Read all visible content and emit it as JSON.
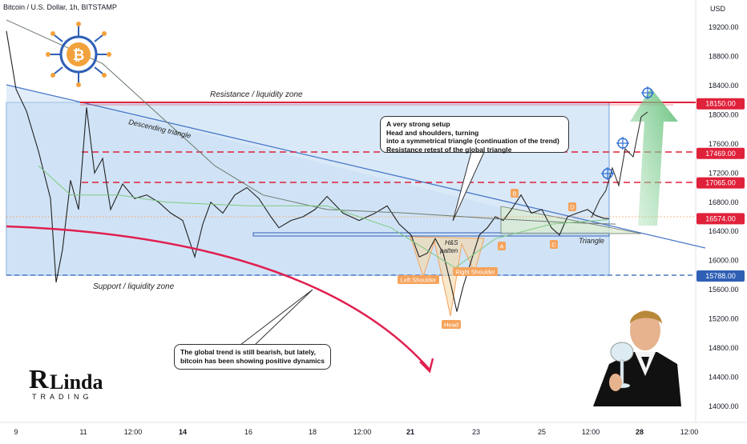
{
  "header": {
    "title": "Bitcoin / U.S. Dollar, 1h, BITSTAMP"
  },
  "currency": "USD",
  "brand": {
    "logo_main": "Linda",
    "logo_r": "R",
    "logo_sub": "TRADING"
  },
  "colors": {
    "resistance": "#e0213a",
    "triangle": "#4a78c8",
    "zone_fill": "#b9d7f2",
    "label_orange": "#f5a35c",
    "ma_slow": "#6d7a6d",
    "ma_fast": "#7ec97e",
    "arrow_green": "#7cc98a",
    "curve_red": "#e02050",
    "candle_up": "#222222",
    "candle_down": "#e02050"
  },
  "chart_data": {
    "type": "line",
    "ylim": [
      13800,
      19300
    ],
    "y_ticks": [
      14000,
      14400,
      14800,
      15200,
      15600,
      16000,
      16400,
      16800,
      17200,
      17600,
      18000,
      18400,
      18800,
      19200
    ],
    "x_ticks": [
      "9",
      "11",
      "12:00",
      "14",
      "16",
      "18",
      "12:00",
      "21",
      "23",
      "25",
      "12:00",
      "28",
      "12:00"
    ],
    "price_labels": [
      {
        "value": "18150.00",
        "kind": "resistance"
      },
      {
        "value": "17469.00",
        "kind": "level"
      },
      {
        "value": "17065.00",
        "kind": "level"
      },
      {
        "value": "16574.00",
        "kind": "current"
      },
      {
        "value": "15788.00",
        "kind": "support"
      }
    ],
    "annotations": {
      "resistance_zone": "Resistance / liquidity zone",
      "support_zone": "Support / liquidity zone",
      "descending_triangle": "Descending triangle",
      "hs_pattern": "H&S\npatten",
      "triangle": "Triangle",
      "left_shoulder": "Left Shoulder",
      "right_shoulder": "Right Shoulder",
      "head": "Head",
      "points": [
        "A",
        "B",
        "C",
        "D"
      ]
    },
    "callouts": {
      "setup": [
        "A very strong setup",
        "Head and shoulders, turning",
        "into a symmetrical triangle (continuation of the trend)",
        "Resistance retest of the global triangle"
      ],
      "trend": [
        "The global trend is still bearish, but lately,",
        "bitcoin has been showing positive dynamics"
      ]
    },
    "series": [
      {
        "values": [
          [
            0,
            19150
          ],
          [
            12,
            18350
          ],
          [
            25,
            18050
          ],
          [
            40,
            17500
          ],
          [
            55,
            16850
          ],
          [
            62,
            15700
          ],
          [
            70,
            16150
          ],
          [
            80,
            17100
          ],
          [
            90,
            16700
          ],
          [
            100,
            18100
          ],
          [
            110,
            17200
          ],
          [
            120,
            17400
          ],
          [
            130,
            16700
          ],
          [
            145,
            17050
          ],
          [
            160,
            16850
          ],
          [
            175,
            16900
          ],
          [
            190,
            16800
          ],
          [
            205,
            16650
          ],
          [
            220,
            16550
          ],
          [
            235,
            16050
          ],
          [
            245,
            16500
          ],
          [
            255,
            16800
          ],
          [
            270,
            16650
          ],
          [
            285,
            16900
          ],
          [
            300,
            17000
          ],
          [
            315,
            16850
          ],
          [
            330,
            16600
          ],
          [
            340,
            16450
          ],
          [
            355,
            16550
          ],
          [
            370,
            16600
          ],
          [
            385,
            16700
          ],
          [
            400,
            16880
          ],
          [
            420,
            16650
          ],
          [
            440,
            16550
          ],
          [
            460,
            16650
          ],
          [
            475,
            16750
          ],
          [
            490,
            16500
          ],
          [
            505,
            16350
          ],
          [
            515,
            16050
          ],
          [
            525,
            16100
          ],
          [
            535,
            16300
          ],
          [
            545,
            16100
          ],
          [
            555,
            15650
          ],
          [
            562,
            15300
          ],
          [
            570,
            15650
          ],
          [
            580,
            16000
          ],
          [
            590,
            16350
          ],
          [
            600,
            16450
          ],
          [
            610,
            16600
          ],
          [
            620,
            16550
          ],
          [
            630,
            16700
          ],
          [
            642,
            16900
          ],
          [
            655,
            16650
          ],
          [
            668,
            16700
          ],
          [
            680,
            16450
          ],
          [
            690,
            16350
          ],
          [
            700,
            16600
          ],
          [
            712,
            16650
          ],
          [
            725,
            16700
          ],
          [
            735,
            16620
          ],
          [
            745,
            16580
          ],
          [
            752,
            16574
          ]
        ]
      },
      {
        "values": [
          [
            0,
            19300
          ],
          [
            120,
            18700
          ],
          [
            200,
            17900
          ],
          [
            260,
            17300
          ],
          [
            320,
            16900
          ],
          [
            400,
            16700
          ],
          [
            500,
            16650
          ],
          [
            600,
            16580
          ],
          [
            700,
            16520
          ],
          [
            760,
            16500
          ]
        ]
      },
      {
        "values": [
          [
            40,
            17300
          ],
          [
            80,
            16900
          ],
          [
            140,
            16900
          ],
          [
            200,
            16800
          ],
          [
            300,
            16750
          ],
          [
            400,
            16750
          ],
          [
            480,
            16450
          ],
          [
            560,
            15900
          ],
          [
            610,
            16300
          ],
          [
            680,
            16500
          ],
          [
            750,
            16560
          ]
        ]
      }
    ]
  }
}
